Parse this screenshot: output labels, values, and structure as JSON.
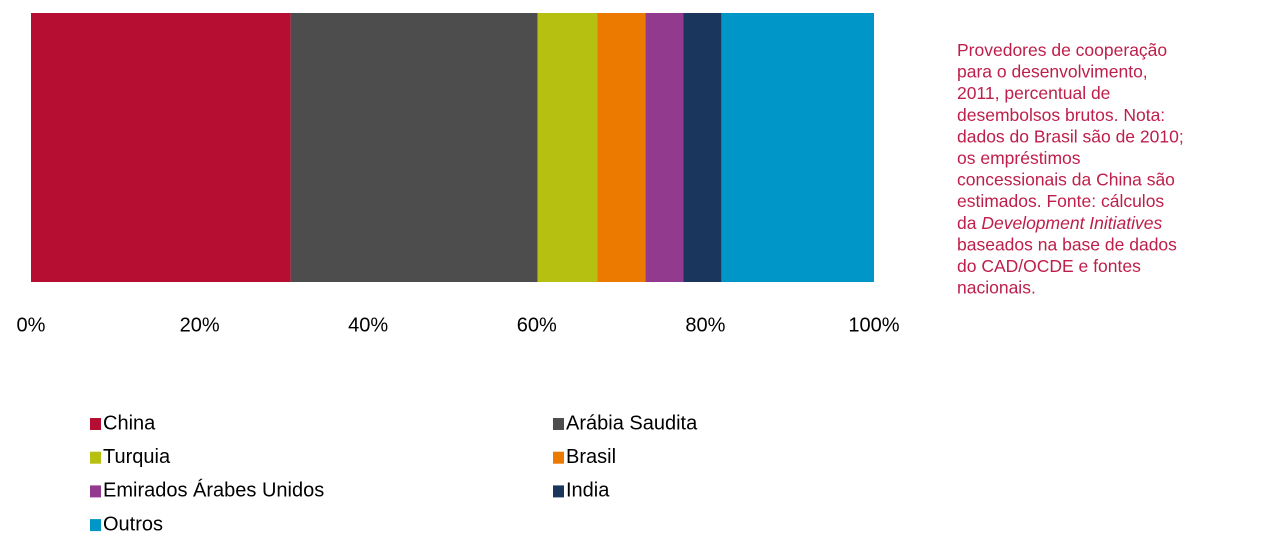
{
  "chart_data": {
    "type": "stacked_bar_horizontal",
    "series": [
      {
        "name": "China",
        "color": "#b50e32",
        "values": [
          30.8
        ]
      },
      {
        "name": "Arábia Saudita",
        "color": "#4d4d4d",
        "values": [
          29.3
        ]
      },
      {
        "name": "Turquia",
        "color": "#b5c010",
        "values": [
          7.1
        ]
      },
      {
        "name": "Brasil",
        "color": "#ec7a00",
        "values": [
          5.7
        ]
      },
      {
        "name": "Emirados Árabes Unidos",
        "color": "#923a8e",
        "values": [
          4.5
        ]
      },
      {
        "name": "India",
        "color": "#1b365d",
        "values": [
          4.5
        ]
      },
      {
        "name": "Outros",
        "color": "#0096c8",
        "values": [
          18.1
        ]
      }
    ],
    "xlim": [
      0,
      100
    ],
    "xticks": [
      {
        "value": 0,
        "label": "0%"
      },
      {
        "value": 20,
        "label": "20%"
      },
      {
        "value": 40,
        "label": "40%"
      },
      {
        "value": 60,
        "label": "60%"
      },
      {
        "value": 80,
        "label": "80%"
      },
      {
        "value": 100,
        "label": "100%"
      }
    ],
    "grid": false,
    "legend": "bottom",
    "annotation_color": "#be1e4b",
    "annotation_lines": [
      [
        {
          "text": "Provedores de cooperação"
        }
      ],
      [
        {
          "text": "para o desenvolvimento,"
        }
      ],
      [
        {
          "text": "2011, percentual de"
        }
      ],
      [
        {
          "text": "desembolsos brutos. Nota:"
        }
      ],
      [
        {
          "text": "dados do Brasil são de 2010;"
        }
      ],
      [
        {
          "text": "os empréstimos"
        }
      ],
      [
        {
          "text": "concessionais da China são"
        }
      ],
      [
        {
          "text": "estimados. Fonte:  cálculos"
        }
      ],
      [
        {
          "text": "da "
        },
        {
          "text": "Development Initiatives",
          "italic": true
        }
      ],
      [
        {
          "text": "baseados na base de dados"
        }
      ],
      [
        {
          "text": "do CAD/OCDE e fontes"
        }
      ],
      [
        {
          "text": "nacionais."
        }
      ]
    ]
  }
}
